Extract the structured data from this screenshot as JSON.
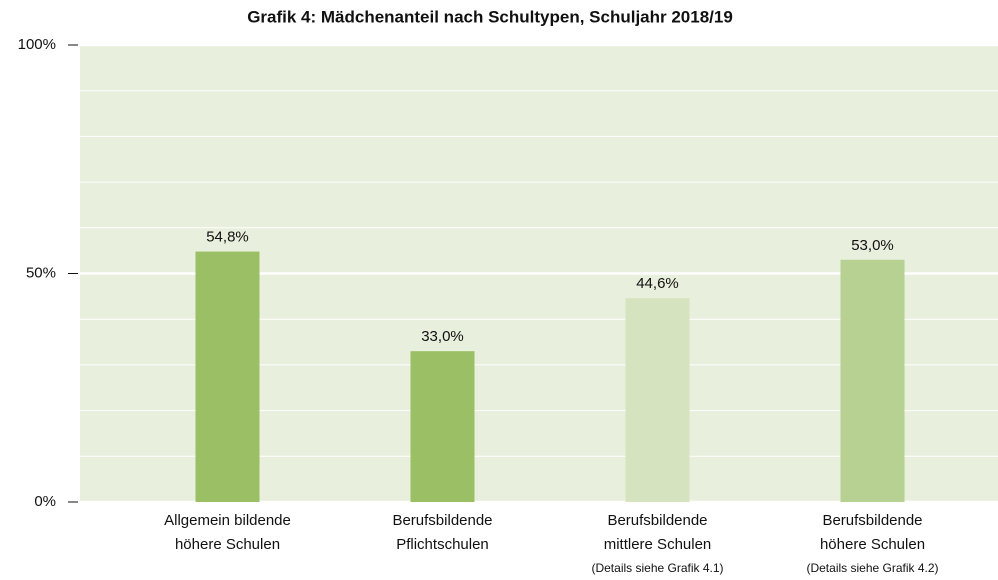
{
  "chart_data": {
    "type": "bar",
    "title": "Grafik 4:  Mädchenanteil nach Schultypen, Schuljahr 2018/19",
    "categories": [
      [
        "Allgemein bildende",
        "höhere Schulen"
      ],
      [
        "Berufsbildende",
        "Pflichtschulen"
      ],
      [
        "Berufsbildende",
        "mittlere Schulen"
      ],
      [
        "Berufsbildende",
        "höhere Schulen"
      ]
    ],
    "category_notes": [
      null,
      null,
      "(Details siehe Grafik 4.1)",
      "(Details siehe Grafik 4.2)"
    ],
    "values": [
      54.8,
      33.0,
      44.6,
      53.0
    ],
    "value_labels": [
      "54,8%",
      "33,0%",
      "44,6%",
      "53,0%"
    ],
    "colors": [
      "#9bbf65",
      "#9bbf65",
      "#d6e3bf",
      "#b6d192"
    ],
    "ylim": [
      0,
      100
    ],
    "yticks": [
      {
        "value": 0,
        "label": "0%"
      },
      {
        "value": 50,
        "label": "50%"
      },
      {
        "value": 100,
        "label": "100%"
      }
    ],
    "minor_yticks": [
      10,
      20,
      30,
      40,
      60,
      70,
      80,
      90
    ],
    "grid": true,
    "plot_background": "#e8efdc"
  }
}
